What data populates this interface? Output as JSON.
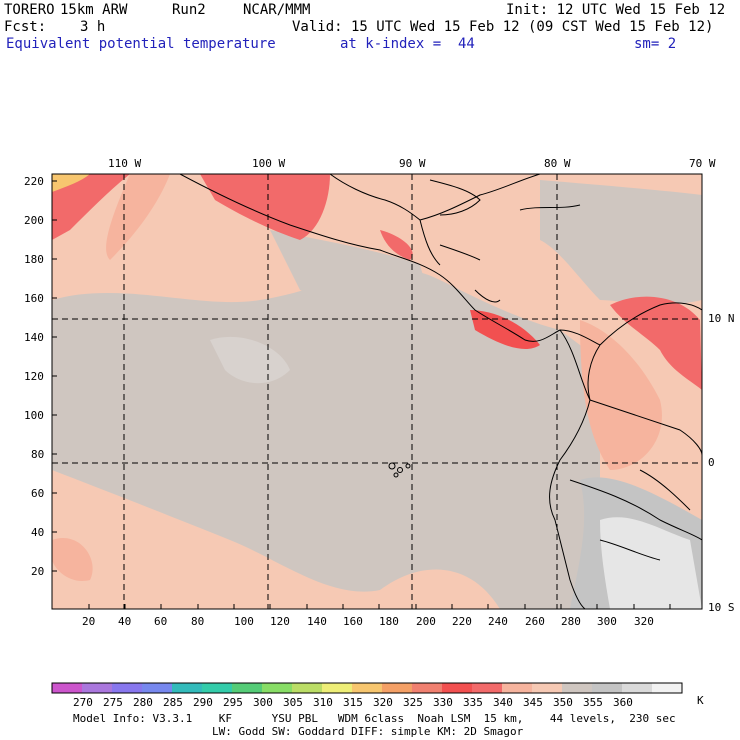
{
  "header": {
    "model": "TORERO",
    "resolution": "15km ARW",
    "run": "Run2",
    "org": "NCAR/MMM",
    "init": "Init: 12 UTC Wed 15 Feb 12",
    "fcst_label": "Fcst:",
    "fcst_value": "3 h",
    "valid": "Valid: 15 UTC Wed 15 Feb 12 (09 CST Wed 15 Feb 12)",
    "field": "Equivalent potential temperature",
    "level": "at k-index =  44",
    "smoothing": "sm= 2"
  },
  "map": {
    "lon_labels": [
      "110 W",
      "100 W",
      "90 W",
      "80 W",
      "70 W"
    ],
    "lat_labels": [
      "10 N",
      "0",
      "10 S"
    ],
    "x_ticks": [
      "20",
      "40",
      "60",
      "80",
      "100",
      "120",
      "140",
      "160",
      "180",
      "200",
      "220",
      "240",
      "260",
      "280",
      "300",
      "320"
    ],
    "y_ticks": [
      "220",
      "200",
      "180",
      "160",
      "140",
      "120",
      "100",
      "80",
      "60",
      "40",
      "20"
    ]
  },
  "colorbar": {
    "levels": [
      "270",
      "275",
      "280",
      "285",
      "290",
      "295",
      "300",
      "305",
      "310",
      "315",
      "320",
      "325",
      "330",
      "335",
      "340",
      "345",
      "350",
      "355",
      "360"
    ],
    "unit": "K",
    "colors": [
      "#cc55cc",
      "#aa77dd",
      "#8877ee",
      "#7788ee",
      "#33bbbb",
      "#33ccaa",
      "#55cc77",
      "#88dd66",
      "#bbdd66",
      "#eeee77",
      "#f7c66f",
      "#f4a066",
      "#f08070",
      "#f25050",
      "#f26a6a",
      "#f6b49e",
      "#f6c9b4",
      "#cfc6c0",
      "#c4c4c4",
      "#dadada",
      "#f2f2f2"
    ]
  },
  "footer": {
    "line1": "Model Info: V3.3.1    KF      YSU PBL   WDM 6class  Noah LSM  15 km,    44 levels,  230 sec",
    "line2": "LW: Godd SW: Goddard DIFF: simple KM: 2D Smagor"
  }
}
